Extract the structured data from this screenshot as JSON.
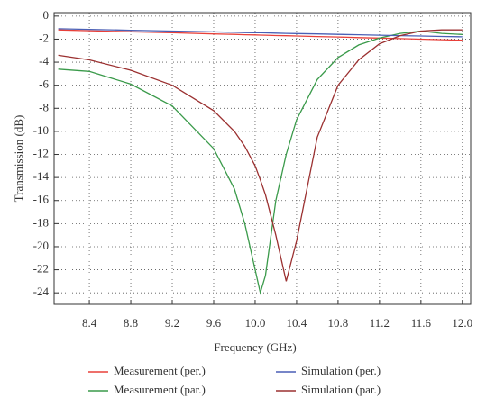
{
  "chart_data": {
    "type": "line",
    "x_label": "Frequency (GHz)",
    "y_label": "Transmission (dB)",
    "x": [
      8.1,
      8.4,
      8.8,
      9.2,
      9.6,
      9.8,
      9.9,
      10.0,
      10.05,
      10.1,
      10.2,
      10.3,
      10.4,
      10.6,
      10.8,
      11.0,
      11.2,
      11.4,
      11.6,
      11.8,
      12.0
    ],
    "series": [
      {
        "name": "Measurement (per.)",
        "color": "#e8403a",
        "values": [
          -1.2,
          -1.27,
          -1.36,
          -1.45,
          -1.55,
          -1.59,
          -1.62,
          -1.64,
          -1.65,
          -1.66,
          -1.69,
          -1.71,
          -1.73,
          -1.78,
          -1.82,
          -1.87,
          -1.91,
          -1.96,
          -2.0,
          -2.05,
          -2.1
        ]
      },
      {
        "name": "Measurement (par.)",
        "color": "#3a9a4a",
        "values": [
          -4.6,
          -4.8,
          -5.9,
          -7.8,
          -11.5,
          -15,
          -18,
          -22,
          -24,
          -22.5,
          -16,
          -12,
          -9,
          -5.5,
          -3.6,
          -2.5,
          -1.9,
          -1.5,
          -1.3,
          -1.5,
          -1.6
        ]
      },
      {
        "name": "Simulation (per.)",
        "color": "#4a5fb5",
        "values": [
          -1.1,
          -1.15,
          -1.23,
          -1.3,
          -1.37,
          -1.41,
          -1.43,
          -1.44,
          -1.45,
          -1.46,
          -1.48,
          -1.5,
          -1.52,
          -1.55,
          -1.59,
          -1.62,
          -1.66,
          -1.7,
          -1.73,
          -1.77,
          -1.8
        ]
      },
      {
        "name": "Simulation (par.)",
        "color": "#9b3030",
        "values": [
          -3.4,
          -3.8,
          -4.7,
          -6,
          -8.2,
          -10,
          -11.3,
          -13,
          -14.2,
          -15.5,
          -19,
          -23,
          -19.5,
          -10.5,
          -6,
          -3.8,
          -2.4,
          -1.7,
          -1.3,
          -1.2,
          -1.2
        ]
      }
    ],
    "xlim": [
      8.06,
      12.08
    ],
    "xticks": [
      {
        "value": 8.4,
        "label": "8.4"
      },
      {
        "value": 8.8,
        "label": "8.8"
      },
      {
        "value": 9.2,
        "label": "9.2"
      },
      {
        "value": 9.6,
        "label": "9.6"
      },
      {
        "value": 10.0,
        "label": "10.0"
      },
      {
        "value": 10.4,
        "label": "10.4"
      },
      {
        "value": 10.8,
        "label": "10.8"
      },
      {
        "value": 11.2,
        "label": "11.2"
      },
      {
        "value": 11.6,
        "label": "11.6"
      },
      {
        "value": 12.0,
        "label": "12.0"
      }
    ],
    "ylim": [
      -25,
      0.3
    ],
    "yticks": [
      0,
      -2,
      -4,
      -6,
      -8,
      -10,
      -12,
      -14,
      -16,
      -18,
      -20,
      -22,
      -24
    ],
    "grid": true
  }
}
